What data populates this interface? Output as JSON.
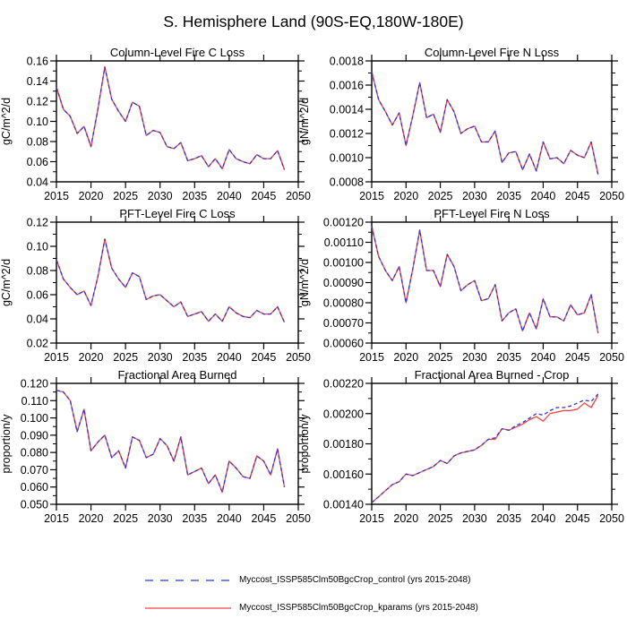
{
  "title": "S. Hemisphere Land (90S-EQ,180W-180E)",
  "legend": {
    "entries": [
      {
        "label": "Myccost_ISSP585Clm50BgcCrop_control (yrs 2015-2048)",
        "color": "#3333cc",
        "dash": "9 8"
      },
      {
        "label": "Myccost_ISSP585Clm50BgcCrop_kparams (yrs 2015-2048)",
        "color": "#ee4444",
        "dash": "none"
      }
    ]
  },
  "chart_data": [
    {
      "type": "line",
      "title": "Column-Level Fire C Loss",
      "ylabel": "gC/m^2/d",
      "xlabel": "",
      "xlim": [
        2015,
        2050
      ],
      "x_start": 2015,
      "xticks": {
        "values": [
          2015,
          2020,
          2025,
          2030,
          2035,
          2040,
          2045,
          2050
        ],
        "labels": [
          "2015",
          "2020",
          "2025",
          "2030",
          "2035",
          "2040",
          "2045",
          "2050"
        ]
      },
      "ylim": [
        0.04,
        0.16
      ],
      "yticks": {
        "values": [
          0.04,
          0.06,
          0.08,
          0.1,
          0.12,
          0.14,
          0.16
        ],
        "labels": [
          "0.04",
          "0.06",
          "0.08",
          "0.10",
          "0.12",
          "0.14",
          "0.16"
        ]
      },
      "grid": false,
      "series": [
        {
          "name": "Myccost_ISSP585Clm50BgcCrop_kparams",
          "color": "#ee4444",
          "dash": "none",
          "values": [
            0.134,
            0.112,
            0.105,
            0.088,
            0.095,
            0.075,
            0.112,
            0.154,
            0.122,
            0.11,
            0.1,
            0.119,
            0.115,
            0.086,
            0.091,
            0.089,
            0.075,
            0.073,
            0.079,
            0.061,
            0.063,
            0.066,
            0.055,
            0.063,
            0.053,
            0.072,
            0.063,
            0.06,
            0.058,
            0.067,
            0.063,
            0.063,
            0.071,
            0.052
          ]
        },
        {
          "name": "Myccost_ISSP585Clm50BgcCrop_control",
          "color": "#3333cc",
          "dash": "4 3",
          "values": [
            0.134,
            0.112,
            0.105,
            0.088,
            0.095,
            0.075,
            0.112,
            0.154,
            0.122,
            0.11,
            0.1,
            0.119,
            0.115,
            0.086,
            0.091,
            0.089,
            0.075,
            0.073,
            0.079,
            0.061,
            0.063,
            0.066,
            0.055,
            0.063,
            0.053,
            0.072,
            0.063,
            0.06,
            0.058,
            0.067,
            0.063,
            0.063,
            0.071,
            0.052
          ]
        }
      ]
    },
    {
      "type": "line",
      "title": "Column-Level Fire N Loss",
      "ylabel": "gN/m^2/d",
      "xlabel": "",
      "xlim": [
        2015,
        2050
      ],
      "x_start": 2015,
      "xticks": {
        "values": [
          2015,
          2020,
          2025,
          2030,
          2035,
          2040,
          2045,
          2050
        ],
        "labels": [
          "2015",
          "2020",
          "2025",
          "2030",
          "2035",
          "2040",
          "2045",
          "2050"
        ]
      },
      "ylim": [
        0.0008,
        0.0018
      ],
      "yticks": {
        "values": [
          0.0008,
          0.001,
          0.0012,
          0.0014,
          0.0016,
          0.0018
        ],
        "labels": [
          "0.0008",
          "0.0010",
          "0.0012",
          "0.0014",
          "0.0016",
          "0.0018"
        ]
      },
      "grid": false,
      "series": [
        {
          "name": "Myccost_ISSP585Clm50BgcCrop_kparams",
          "color": "#ee4444",
          "dash": "none",
          "values": [
            0.00171,
            0.00148,
            0.00138,
            0.00127,
            0.00137,
            0.0011,
            0.00135,
            0.00162,
            0.00133,
            0.00136,
            0.00121,
            0.00148,
            0.00138,
            0.0012,
            0.00124,
            0.00126,
            0.00113,
            0.00113,
            0.00122,
            0.00096,
            0.00104,
            0.00105,
            0.0009,
            0.00103,
            0.00089,
            0.00113,
            0.00099,
            0.001,
            0.00095,
            0.00106,
            0.00102,
            0.001,
            0.00113,
            0.00086
          ]
        },
        {
          "name": "Myccost_ISSP585Clm50BgcCrop_control",
          "color": "#3333cc",
          "dash": "4 3",
          "values": [
            0.00171,
            0.00148,
            0.00138,
            0.00127,
            0.00137,
            0.0011,
            0.00135,
            0.00162,
            0.00133,
            0.00136,
            0.00121,
            0.00148,
            0.00138,
            0.0012,
            0.00124,
            0.00126,
            0.00113,
            0.00113,
            0.00122,
            0.00096,
            0.00104,
            0.00105,
            0.0009,
            0.00103,
            0.00089,
            0.00113,
            0.00099,
            0.001,
            0.00095,
            0.00106,
            0.00102,
            0.001,
            0.00113,
            0.00086
          ]
        }
      ]
    },
    {
      "type": "line",
      "title": "PFT-Level Fire C Loss",
      "ylabel": "gC/m^2/d",
      "xlabel": "",
      "xlim": [
        2015,
        2050
      ],
      "x_start": 2015,
      "xticks": {
        "values": [
          2015,
          2020,
          2025,
          2030,
          2035,
          2040,
          2045,
          2050
        ],
        "labels": [
          "2015",
          "2020",
          "2025",
          "2030",
          "2035",
          "2040",
          "2045",
          "2050"
        ]
      },
      "ylim": [
        0.02,
        0.12
      ],
      "yticks": {
        "values": [
          0.02,
          0.04,
          0.06,
          0.08,
          0.1,
          0.12
        ],
        "labels": [
          "0.02",
          "0.04",
          "0.06",
          "0.08",
          "0.10",
          "0.12"
        ]
      },
      "grid": false,
      "series": [
        {
          "name": "Myccost_ISSP585Clm50BgcCrop_kparams",
          "color": "#ee4444",
          "dash": "none",
          "values": [
            0.089,
            0.073,
            0.066,
            0.06,
            0.063,
            0.051,
            0.075,
            0.106,
            0.082,
            0.073,
            0.066,
            0.078,
            0.075,
            0.056,
            0.059,
            0.06,
            0.055,
            0.05,
            0.054,
            0.042,
            0.044,
            0.046,
            0.038,
            0.044,
            0.038,
            0.05,
            0.045,
            0.042,
            0.041,
            0.047,
            0.044,
            0.044,
            0.05,
            0.037
          ]
        },
        {
          "name": "Myccost_ISSP585Clm50BgcCrop_control",
          "color": "#3333cc",
          "dash": "4 3",
          "values": [
            0.089,
            0.073,
            0.066,
            0.06,
            0.063,
            0.051,
            0.075,
            0.106,
            0.082,
            0.073,
            0.066,
            0.078,
            0.075,
            0.056,
            0.059,
            0.06,
            0.055,
            0.05,
            0.054,
            0.042,
            0.044,
            0.046,
            0.038,
            0.044,
            0.038,
            0.05,
            0.045,
            0.042,
            0.041,
            0.047,
            0.044,
            0.044,
            0.05,
            0.037
          ]
        }
      ]
    },
    {
      "type": "line",
      "title": "PFT-Level Fire N Loss",
      "ylabel": "gN/m^2/d",
      "xlabel": "",
      "xlim": [
        2015,
        2050
      ],
      "x_start": 2015,
      "xticks": {
        "values": [
          2015,
          2020,
          2025,
          2030,
          2035,
          2040,
          2045,
          2050
        ],
        "labels": [
          "2015",
          "2020",
          "2025",
          "2030",
          "2035",
          "2040",
          "2045",
          "2050"
        ]
      },
      "ylim": [
        0.0006,
        0.0012
      ],
      "yticks": {
        "values": [
          0.0006,
          0.0007,
          0.0008,
          0.0009,
          0.001,
          0.0011,
          0.0012
        ],
        "labels": [
          "0.00060",
          "0.00070",
          "0.00080",
          "0.00090",
          "0.00100",
          "0.00110",
          "0.00120"
        ]
      },
      "grid": false,
      "series": [
        {
          "name": "Myccost_ISSP585Clm50BgcCrop_kparams",
          "color": "#ee4444",
          "dash": "none",
          "values": [
            0.00118,
            0.00103,
            0.00096,
            0.00091,
            0.00098,
            0.0008,
            0.00097,
            0.00116,
            0.00096,
            0.00096,
            0.00088,
            0.00104,
            0.00098,
            0.00086,
            0.00089,
            0.00091,
            0.00081,
            0.00082,
            0.00089,
            0.00071,
            0.00075,
            0.00077,
            0.00066,
            0.00075,
            0.00067,
            0.00082,
            0.00073,
            0.00073,
            0.00071,
            0.00079,
            0.00074,
            0.00075,
            0.00084,
            0.00065
          ]
        },
        {
          "name": "Myccost_ISSP585Clm50BgcCrop_control",
          "color": "#3333cc",
          "dash": "4 3",
          "values": [
            0.00118,
            0.00103,
            0.00096,
            0.00091,
            0.00098,
            0.0008,
            0.00097,
            0.00116,
            0.00096,
            0.00096,
            0.00088,
            0.00104,
            0.00098,
            0.00086,
            0.00089,
            0.00091,
            0.00081,
            0.00082,
            0.00089,
            0.00071,
            0.00075,
            0.00077,
            0.00066,
            0.00075,
            0.00067,
            0.00082,
            0.00073,
            0.00073,
            0.00071,
            0.00079,
            0.00074,
            0.00075,
            0.00084,
            0.00065
          ]
        }
      ]
    },
    {
      "type": "line",
      "title": "Fractional Area Burned",
      "ylabel": "proportion/y",
      "xlabel": "",
      "xlim": [
        2015,
        2050
      ],
      "x_start": 2015,
      "xticks": {
        "values": [
          2015,
          2020,
          2025,
          2030,
          2035,
          2040,
          2045,
          2050
        ],
        "labels": [
          "2015",
          "2020",
          "2025",
          "2030",
          "2035",
          "2040",
          "2045",
          "2050"
        ]
      },
      "ylim": [
        0.05,
        0.12
      ],
      "yticks": {
        "values": [
          0.05,
          0.06,
          0.07,
          0.08,
          0.09,
          0.1,
          0.11,
          0.12
        ],
        "labels": [
          "0.050",
          "0.060",
          "0.070",
          "0.080",
          "0.090",
          "0.100",
          "0.110",
          "0.120"
        ]
      },
      "grid": false,
      "series": [
        {
          "name": "Myccost_ISSP585Clm50BgcCrop_kparams",
          "color": "#ee4444",
          "dash": "none",
          "values": [
            0.116,
            0.115,
            0.11,
            0.092,
            0.105,
            0.081,
            0.086,
            0.09,
            0.077,
            0.081,
            0.071,
            0.089,
            0.087,
            0.077,
            0.079,
            0.088,
            0.084,
            0.075,
            0.089,
            0.067,
            0.069,
            0.071,
            0.062,
            0.067,
            0.057,
            0.075,
            0.071,
            0.066,
            0.065,
            0.078,
            0.075,
            0.067,
            0.082,
            0.06
          ]
        },
        {
          "name": "Myccost_ISSP585Clm50BgcCrop_control",
          "color": "#3333cc",
          "dash": "4 3",
          "values": [
            0.116,
            0.115,
            0.11,
            0.092,
            0.105,
            0.081,
            0.086,
            0.09,
            0.077,
            0.081,
            0.071,
            0.089,
            0.087,
            0.077,
            0.079,
            0.088,
            0.084,
            0.075,
            0.089,
            0.067,
            0.069,
            0.071,
            0.062,
            0.067,
            0.057,
            0.075,
            0.071,
            0.066,
            0.065,
            0.078,
            0.075,
            0.067,
            0.082,
            0.06
          ]
        }
      ]
    },
    {
      "type": "line",
      "title": "Fractional Area Burned - Crop",
      "ylabel": "proportion/y",
      "xlabel": "",
      "xlim": [
        2015,
        2050
      ],
      "x_start": 2015,
      "xticks": {
        "values": [
          2015,
          2020,
          2025,
          2030,
          2035,
          2040,
          2045,
          2050
        ],
        "labels": [
          "2015",
          "2020",
          "2025",
          "2030",
          "2035",
          "2040",
          "2045",
          "2050"
        ]
      },
      "ylim": [
        0.0014,
        0.0022
      ],
      "yticks": {
        "values": [
          0.0014,
          0.0016,
          0.0018,
          0.002,
          0.0022
        ],
        "labels": [
          "0.00140",
          "0.00160",
          "0.00180",
          "0.00200",
          "0.00220"
        ]
      },
      "grid": false,
      "series": [
        {
          "name": "Myccost_ISSP585Clm50BgcCrop_kparams",
          "color": "#ee4444",
          "dash": "none",
          "values": [
            0.00141,
            0.00145,
            0.00149,
            0.00153,
            0.00155,
            0.0016,
            0.00159,
            0.00161,
            0.00163,
            0.00165,
            0.00169,
            0.00167,
            0.00172,
            0.00174,
            0.00175,
            0.00176,
            0.00179,
            0.00183,
            0.00183,
            0.0019,
            0.00189,
            0.00191,
            0.00193,
            0.00196,
            0.00198,
            0.00195,
            0.002,
            0.00201,
            0.00202,
            0.00202,
            0.00203,
            0.00207,
            0.00204,
            0.00212
          ]
        },
        {
          "name": "Myccost_ISSP585Clm50BgcCrop_control",
          "color": "#3333cc",
          "dash": "4 3",
          "values": [
            0.00141,
            0.00145,
            0.00149,
            0.00153,
            0.00155,
            0.0016,
            0.00159,
            0.00161,
            0.00163,
            0.00165,
            0.00169,
            0.00167,
            0.00172,
            0.00174,
            0.00175,
            0.00176,
            0.00179,
            0.00183,
            0.00184,
            0.0019,
            0.00189,
            0.00192,
            0.00194,
            0.00197,
            0.002,
            0.00199,
            0.00202,
            0.00204,
            0.00204,
            0.00205,
            0.00207,
            0.00209,
            0.00208,
            0.00213
          ]
        }
      ]
    }
  ]
}
